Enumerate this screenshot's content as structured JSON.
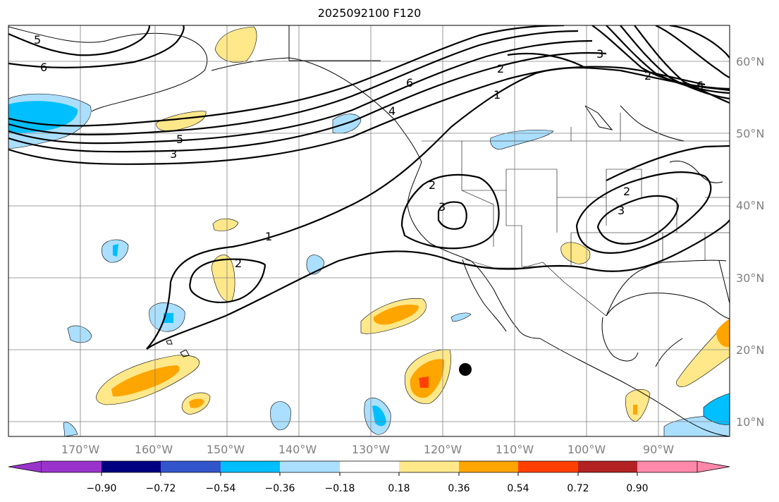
{
  "title": "2025092100 F120",
  "lat_labels": [
    "60°N",
    "50°N",
    "40°N",
    "30°N",
    "20°N",
    "10°N"
  ],
  "lon_labels": [
    "170°W",
    "160°W",
    "150°W",
    "140°W",
    "130°W",
    "120°W",
    "110°W",
    "100°W",
    "90°W"
  ],
  "colorbar": {
    "ticks": [
      "−0.90",
      "−0.72",
      "−0.54",
      "−0.36",
      "−0.18",
      "0.18",
      "0.36",
      "0.54",
      "0.72",
      "0.90"
    ],
    "colors": [
      "#9933cc",
      "#000080",
      "#3355cc",
      "#00bfff",
      "#aadfff",
      "#ffffff",
      "#ffe88a",
      "#ffa500",
      "#ff4000",
      "#b22222",
      "#ff88aa"
    ]
  },
  "contour_labels": [
    "5",
    "6",
    "6",
    "5",
    "3",
    "4",
    "2",
    "1",
    "3",
    "2",
    "6",
    "2",
    "3",
    "1",
    "2",
    "2",
    "3"
  ],
  "marker": "storm-position-dot"
}
